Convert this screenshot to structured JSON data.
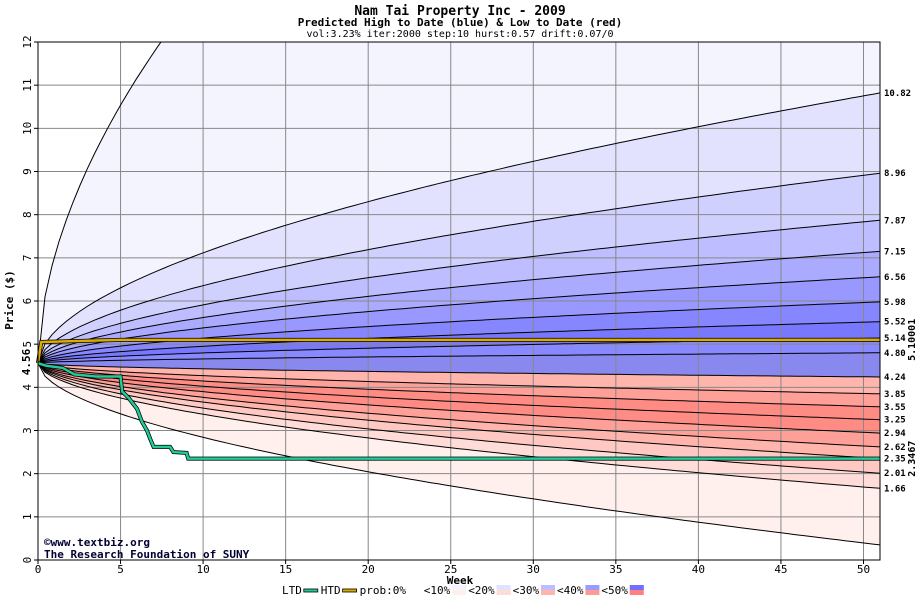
{
  "chart_data": {
    "type": "area",
    "title": "Nam Tai Property Inc - 2009",
    "subtitle": "Predicted High to Date (blue) &  Low to Date (red)",
    "params": "vol:3.23% iter:2000 step:10 hurst:0.57 drift:0.07/0",
    "xlabel": "Week",
    "ylabel": "Price ($)",
    "xlim": [
      0,
      51
    ],
    "ylim": [
      0,
      12
    ],
    "x_ticks": [
      0,
      5,
      10,
      15,
      20,
      25,
      30,
      35,
      40,
      45,
      50
    ],
    "y_ticks": [
      0,
      1,
      2,
      3,
      4,
      5,
      6,
      7,
      8,
      9,
      10,
      11,
      12
    ],
    "grid": true,
    "start_price_label": "4.56",
    "start_price": 4.56,
    "colors": {
      "high_band": "#0000ff",
      "low_band": "#ff3333",
      "htd_line": "#ddaa00",
      "ltd_line": "#22cc99",
      "htd_label": "#aa7700",
      "ltd_label": "#119977"
    },
    "high_quantiles": [
      {
        "label": "10.82",
        "end": 10.82
      },
      {
        "label": "8.96",
        "end": 8.96
      },
      {
        "label": "7.87",
        "end": 7.87
      },
      {
        "label": "7.15",
        "end": 7.15
      },
      {
        "label": "6.56",
        "end": 6.56
      },
      {
        "label": "5.98",
        "end": 5.98
      },
      {
        "label": "5.52",
        "end": 5.52
      },
      {
        "label": "5.14",
        "end": 5.14
      },
      {
        "label": "4.80",
        "end": 4.8
      }
    ],
    "low_quantiles": [
      {
        "label": "4.24",
        "end": 4.24
      },
      {
        "label": "3.85",
        "end": 3.85
      },
      {
        "label": "3.55",
        "end": 3.55
      },
      {
        "label": "3.25",
        "end": 3.25
      },
      {
        "label": "2.94",
        "end": 2.94
      },
      {
        "label": "2.62",
        "end": 2.62
      },
      {
        "label": "2.35",
        "end": 2.35
      },
      {
        "label": "2.01",
        "end": 2.01
      },
      {
        "label": "1.66",
        "end": 1.66
      }
    ],
    "htd_label": "5.10001",
    "htd_value": 5.10001,
    "ltd_label": "2.3467",
    "ltd_value": 2.3467,
    "ltd_path": [
      [
        0,
        4.56
      ],
      [
        0.5,
        4.5
      ],
      [
        1.5,
        4.45
      ],
      [
        2.2,
        4.3
      ],
      [
        3.5,
        4.25
      ],
      [
        5,
        4.25
      ],
      [
        5.1,
        3.9
      ],
      [
        5.5,
        3.75
      ],
      [
        6,
        3.5
      ],
      [
        6.3,
        3.2
      ],
      [
        6.6,
        3.0
      ],
      [
        6.8,
        2.8
      ],
      [
        7,
        2.62
      ],
      [
        8,
        2.62
      ],
      [
        8.2,
        2.5
      ],
      [
        9,
        2.48
      ],
      [
        9.1,
        2.35
      ],
      [
        51,
        2.35
      ]
    ],
    "htd_path": [
      [
        0,
        4.56
      ],
      [
        0.2,
        5.05
      ],
      [
        5,
        5.1
      ],
      [
        51,
        5.10001
      ]
    ],
    "band_labels": [
      "<10%",
      "<20%",
      "<30%",
      "<40%",
      "<50%"
    ]
  },
  "credit": {
    "site": "www.textbiz.org",
    "org": "The Research Foundation of SUNY"
  },
  "legend": {
    "ltd": "LTD",
    "htd": "HTD",
    "prob": "prob:0%",
    "b1": "<10%",
    "b2": "<20%",
    "b3": "<30%",
    "b4": "<40%",
    "b5": "<50%"
  }
}
